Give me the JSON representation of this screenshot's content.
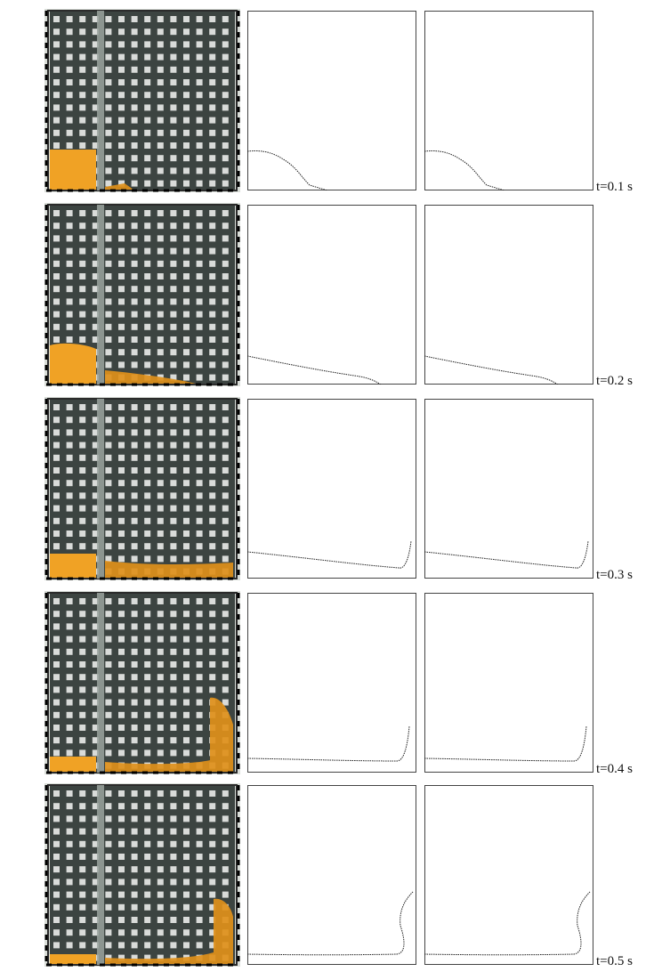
{
  "figure": {
    "rows": [
      {
        "time_label": "t=0.1 s"
      },
      {
        "time_label": "t=0.2 s"
      },
      {
        "time_label": "t=0.3 s"
      },
      {
        "time_label": "t=0.4 s"
      },
      {
        "time_label": "t=0.5 s"
      }
    ]
  },
  "colors": {
    "fluid": "#f0a225",
    "fluid_dark": "#e0901a",
    "tank_frame": "#2b2b2b",
    "grid_dark": "#3c4441",
    "grid_light": "#f4f6f4",
    "curve": "#222222",
    "panel_border": "#444444"
  }
}
